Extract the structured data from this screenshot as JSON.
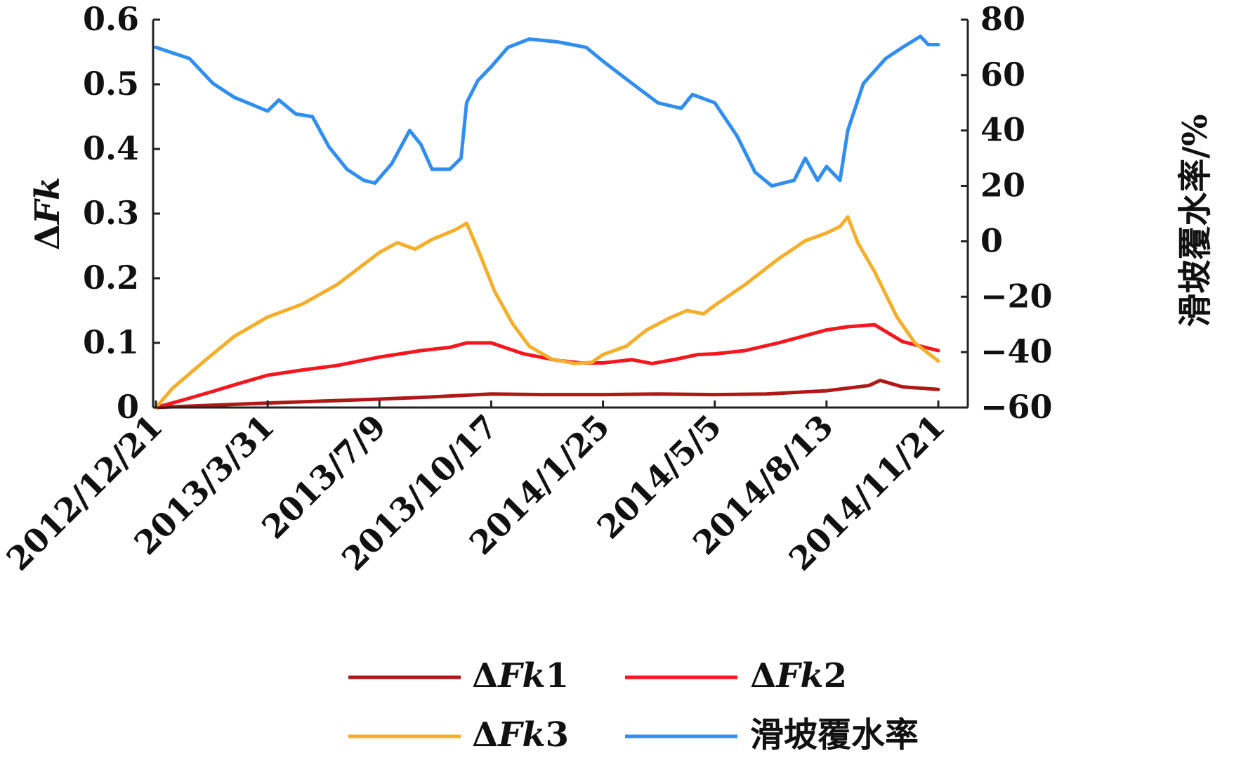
{
  "chart_data": {
    "type": "line",
    "left_axis": {
      "label_prefix": "Δ",
      "label_italic": "Fk",
      "ticks": [
        "0",
        "0.1",
        "0.2",
        "0.3",
        "0.4",
        "0.5",
        "0.6"
      ],
      "range": [
        0,
        0.6
      ]
    },
    "right_axis": {
      "label": "滑坡覆水率/%",
      "ticks": [
        "−60",
        "−40",
        "−20",
        "0",
        "20",
        "40",
        "60",
        "80"
      ],
      "range": [
        -60,
        80
      ]
    },
    "x_axis": {
      "type": "date",
      "ticks": [
        "2012/12/21",
        "2013/3/31",
        "2013/7/9",
        "2013/10/17",
        "2014/1/25",
        "2014/5/5",
        "2014/8/13",
        "2014/11/21"
      ],
      "range": [
        "2012-12-21",
        "2014-11-21"
      ]
    },
    "colors": {
      "dfk1": "#b01818",
      "dfk2": "#f5161e",
      "dfk3": "#f5ae2a",
      "water": "#2f8ef0"
    },
    "series": [
      {
        "name_prefix": "Δ",
        "name_italic": "Fk",
        "name_suffix": "1",
        "axis": "left",
        "color_key": "dfk1",
        "points": [
          [
            "2012-12-21",
            0
          ],
          [
            "2013-02-01",
            0.003
          ],
          [
            "2013-03-31",
            0.007
          ],
          [
            "2013-05-20",
            0.01
          ],
          [
            "2013-07-09",
            0.013
          ],
          [
            "2013-08-20",
            0.016
          ],
          [
            "2013-10-17",
            0.021
          ],
          [
            "2013-12-01",
            0.02
          ],
          [
            "2014-01-25",
            0.02
          ],
          [
            "2014-03-15",
            0.021
          ],
          [
            "2014-05-05",
            0.02
          ],
          [
            "2014-06-20",
            0.021
          ],
          [
            "2014-08-13",
            0.026
          ],
          [
            "2014-09-20",
            0.034
          ],
          [
            "2014-09-30",
            0.042
          ],
          [
            "2014-10-20",
            0.032
          ],
          [
            "2014-11-21",
            0.028
          ]
        ]
      },
      {
        "name_prefix": "Δ",
        "name_italic": "Fk",
        "name_suffix": "2",
        "axis": "left",
        "color_key": "dfk2",
        "points": [
          [
            "2012-12-21",
            0
          ],
          [
            "2013-01-15",
            0.012
          ],
          [
            "2013-02-10",
            0.025
          ],
          [
            "2013-03-01",
            0.035
          ],
          [
            "2013-03-31",
            0.05
          ],
          [
            "2013-05-01",
            0.058
          ],
          [
            "2013-06-01",
            0.065
          ],
          [
            "2013-07-09",
            0.078
          ],
          [
            "2013-08-15",
            0.088
          ],
          [
            "2013-09-10",
            0.093
          ],
          [
            "2013-09-25",
            0.1
          ],
          [
            "2013-10-17",
            0.1
          ],
          [
            "2013-11-15",
            0.083
          ],
          [
            "2013-12-15",
            0.073
          ],
          [
            "2014-01-05",
            0.069
          ],
          [
            "2014-01-25",
            0.069
          ],
          [
            "2014-02-20",
            0.074
          ],
          [
            "2014-03-10",
            0.068
          ],
          [
            "2014-04-01",
            0.075
          ],
          [
            "2014-04-20",
            0.082
          ],
          [
            "2014-05-05",
            0.083
          ],
          [
            "2014-06-01",
            0.088
          ],
          [
            "2014-07-01",
            0.1
          ],
          [
            "2014-08-13",
            0.12
          ],
          [
            "2014-09-01",
            0.125
          ],
          [
            "2014-09-25",
            0.128
          ],
          [
            "2014-10-20",
            0.102
          ],
          [
            "2014-11-21",
            0.088
          ]
        ]
      },
      {
        "name_prefix": "Δ",
        "name_italic": "Fk",
        "name_suffix": "3",
        "axis": "left",
        "color_key": "dfk3",
        "points": [
          [
            "2012-12-21",
            0
          ],
          [
            "2013-01-05",
            0.03
          ],
          [
            "2013-02-01",
            0.07
          ],
          [
            "2013-03-01",
            0.11
          ],
          [
            "2013-03-31",
            0.14
          ],
          [
            "2013-05-01",
            0.16
          ],
          [
            "2013-06-01",
            0.19
          ],
          [
            "2013-07-09",
            0.24
          ],
          [
            "2013-07-25",
            0.255
          ],
          [
            "2013-08-10",
            0.245
          ],
          [
            "2013-08-25",
            0.26
          ],
          [
            "2013-09-15",
            0.275
          ],
          [
            "2013-09-25",
            0.285
          ],
          [
            "2013-10-05",
            0.245
          ],
          [
            "2013-10-20",
            0.18
          ],
          [
            "2013-11-05",
            0.13
          ],
          [
            "2013-11-20",
            0.095
          ],
          [
            "2013-12-10",
            0.075
          ],
          [
            "2013-12-31",
            0.068
          ],
          [
            "2014-01-15",
            0.07
          ],
          [
            "2014-01-25",
            0.082
          ],
          [
            "2014-02-15",
            0.095
          ],
          [
            "2014-03-05",
            0.12
          ],
          [
            "2014-03-25",
            0.138
          ],
          [
            "2014-04-10",
            0.15
          ],
          [
            "2014-04-25",
            0.145
          ],
          [
            "2014-05-05",
            0.158
          ],
          [
            "2014-06-01",
            0.19
          ],
          [
            "2014-07-01",
            0.23
          ],
          [
            "2014-07-25",
            0.258
          ],
          [
            "2014-08-13",
            0.27
          ],
          [
            "2014-08-25",
            0.28
          ],
          [
            "2014-09-01",
            0.295
          ],
          [
            "2014-09-10",
            0.255
          ],
          [
            "2014-09-25",
            0.21
          ],
          [
            "2014-10-15",
            0.14
          ],
          [
            "2014-10-31",
            0.1
          ],
          [
            "2014-11-21",
            0.072
          ]
        ]
      },
      {
        "name": "滑坡覆水率",
        "axis": "right",
        "color_key": "water",
        "points": [
          [
            "2012-12-21",
            70
          ],
          [
            "2013-01-20",
            66
          ],
          [
            "2013-02-10",
            57
          ],
          [
            "2013-03-01",
            52
          ],
          [
            "2013-03-31",
            47
          ],
          [
            "2013-04-10",
            51
          ],
          [
            "2013-04-25",
            46
          ],
          [
            "2013-05-10",
            45
          ],
          [
            "2013-05-25",
            34
          ],
          [
            "2013-06-10",
            26
          ],
          [
            "2013-06-25",
            22
          ],
          [
            "2013-07-05",
            21
          ],
          [
            "2013-07-20",
            28
          ],
          [
            "2013-08-05",
            40
          ],
          [
            "2013-08-15",
            35
          ],
          [
            "2013-08-25",
            26
          ],
          [
            "2013-09-10",
            26
          ],
          [
            "2013-09-20",
            30
          ],
          [
            "2013-09-25",
            50
          ],
          [
            "2013-10-05",
            58
          ],
          [
            "2013-10-17",
            63
          ],
          [
            "2013-11-01",
            70
          ],
          [
            "2013-11-20",
            73
          ],
          [
            "2013-12-15",
            72
          ],
          [
            "2014-01-10",
            70
          ],
          [
            "2014-01-25",
            65
          ],
          [
            "2014-02-20",
            57
          ],
          [
            "2014-03-15",
            50
          ],
          [
            "2014-04-05",
            48
          ],
          [
            "2014-04-15",
            53
          ],
          [
            "2014-05-05",
            50
          ],
          [
            "2014-05-25",
            38
          ],
          [
            "2014-06-10",
            25
          ],
          [
            "2014-06-25",
            20
          ],
          [
            "2014-07-15",
            22
          ],
          [
            "2014-07-25",
            30
          ],
          [
            "2014-08-05",
            22
          ],
          [
            "2014-08-13",
            27
          ],
          [
            "2014-08-25",
            22
          ],
          [
            "2014-09-01",
            40
          ],
          [
            "2014-09-15",
            57
          ],
          [
            "2014-10-05",
            66
          ],
          [
            "2014-10-20",
            70
          ],
          [
            "2014-11-05",
            74
          ],
          [
            "2014-11-12",
            71
          ],
          [
            "2014-11-21",
            71
          ]
        ]
      }
    ],
    "legend": {
      "placement": "bottom",
      "entries": [
        {
          "prefix": "Δ",
          "italic": "Fk",
          "suffix": "1",
          "color_key": "dfk1"
        },
        {
          "prefix": "Δ",
          "italic": "Fk",
          "suffix": "2",
          "color_key": "dfk2"
        },
        {
          "prefix": "Δ",
          "italic": "Fk",
          "suffix": "3",
          "color_key": "dfk3"
        },
        {
          "prefix": "",
          "italic": "",
          "suffix": "滑坡覆水率",
          "color_key": "water"
        }
      ]
    },
    "grid": false
  }
}
